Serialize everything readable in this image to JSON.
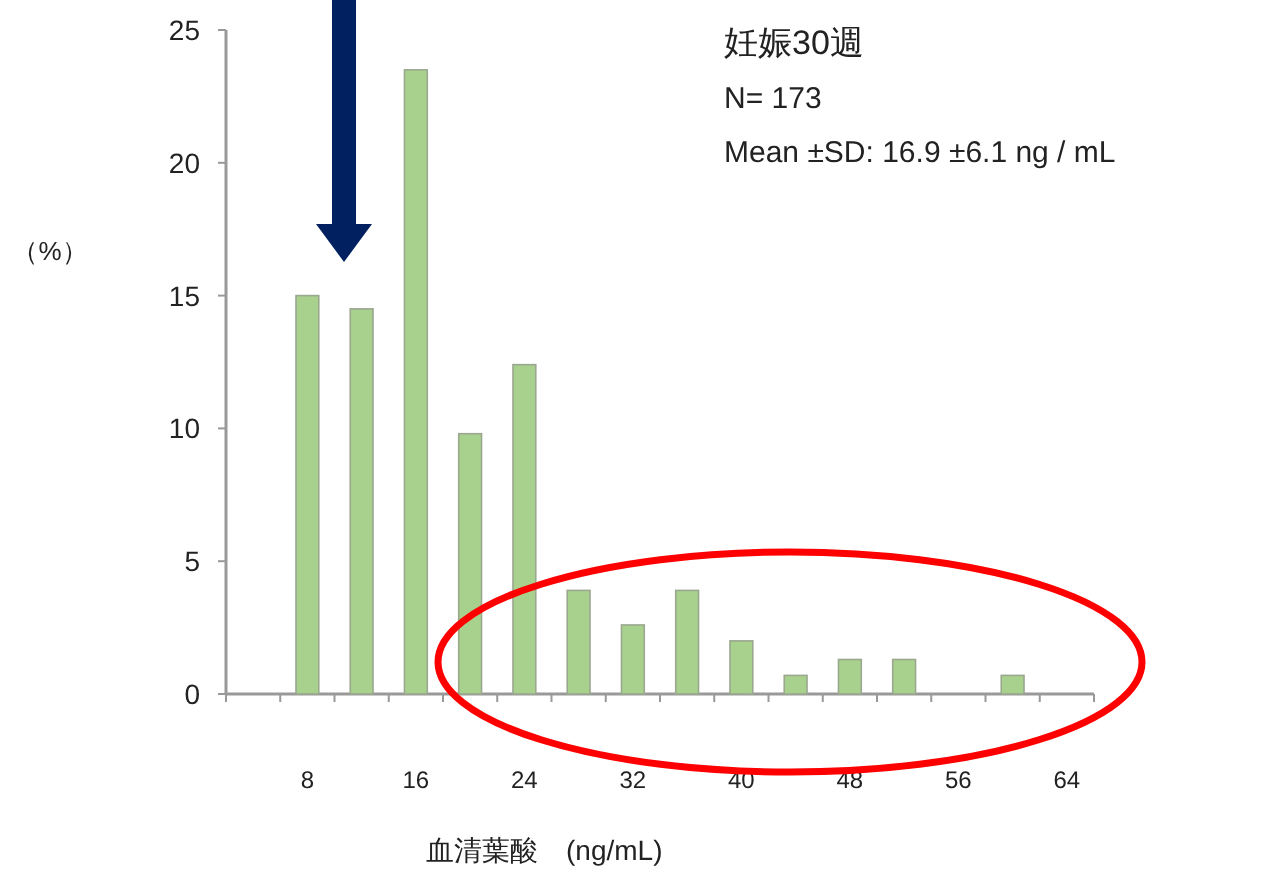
{
  "chart_data": {
    "type": "bar",
    "title": "妊娠30週",
    "annotations": [
      "N= 173",
      "Mean ±SD: 16.9 ±6.1   ng / mL"
    ],
    "xlabel": "血清葉酸　(ng/mL)",
    "ylabel": "（%）",
    "categories": [
      null,
      "8",
      null,
      "16",
      null,
      "24",
      null,
      "32",
      null,
      "40",
      null,
      "48",
      null,
      "56",
      null,
      "64"
    ],
    "values": [
      0,
      15,
      14.5,
      23.5,
      9.8,
      12.4,
      3.9,
      2.6,
      3.9,
      2.0,
      0.7,
      1.3,
      1.3,
      0,
      0.7,
      0
    ],
    "color": "#a9d18e",
    "ylim": [
      0,
      25
    ],
    "yticks": [
      0,
      5,
      10,
      15,
      20,
      25
    ]
  }
}
